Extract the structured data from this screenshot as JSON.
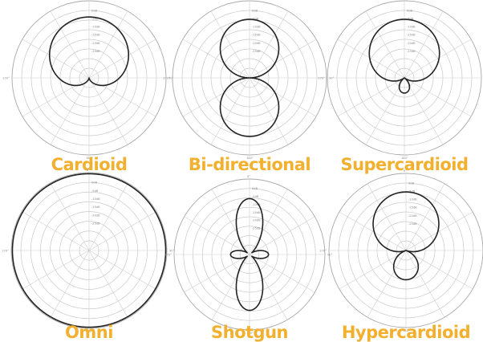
{
  "diagrams": [
    {
      "key": "cardioid",
      "caption": "Cardioid",
      "pattern": "cardioid",
      "db_labels": [
        "0dB",
        "-5dB",
        "-10dB",
        "-15dB",
        "-20dB",
        "-25dB"
      ],
      "angle_labels": [
        "0°",
        "90°",
        "180°",
        "270°"
      ]
    },
    {
      "key": "bidirectional",
      "caption": "Bi-directional",
      "pattern": "figure-eight",
      "db_labels": [
        "0dB",
        "-5dB",
        "-10dB",
        "-15dB",
        "-20dB",
        "-25dB"
      ],
      "angle_labels": [
        "0°",
        "90°",
        "180°",
        "270°"
      ]
    },
    {
      "key": "supercardioid",
      "caption": "Supercardioid",
      "pattern": "supercardioid",
      "db_labels": [
        "0dB",
        "-5dB",
        "-10dB",
        "-15dB",
        "-20dB",
        "-25dB"
      ],
      "angle_labels": [
        "0°",
        "90°",
        "180°",
        "270°"
      ]
    },
    {
      "key": "omni",
      "caption": "Omni",
      "pattern": "omnidirectional",
      "db_labels": [
        "0dB",
        "-5dB",
        "-10dB",
        "-15dB",
        "-20dB",
        "-25dB"
      ],
      "angle_labels": [
        "0°",
        "90°",
        "180°",
        "270°"
      ]
    },
    {
      "key": "shotgun",
      "caption": "Shotgun",
      "pattern": "shotgun",
      "db_labels": [
        "0dB",
        "-5dB",
        "-10dB",
        "-15dB",
        "-20dB",
        "-25dB"
      ],
      "angle_labels": [
        "0°",
        "90°",
        "180°",
        "270°"
      ]
    },
    {
      "key": "hypercardioid",
      "caption": "Hypercardioid",
      "pattern": "hypercardioid",
      "db_labels": [
        "0dB",
        "-5dB",
        "-10dB",
        "-15dB",
        "-20dB",
        "-25dB"
      ],
      "angle_labels": [
        "0°",
        "90°",
        "180°",
        "270°"
      ]
    }
  ],
  "colors": {
    "caption": "#f2b02e",
    "pattern_line": "#222222",
    "grid": "#c9c9c9",
    "background": "#ffffff"
  }
}
